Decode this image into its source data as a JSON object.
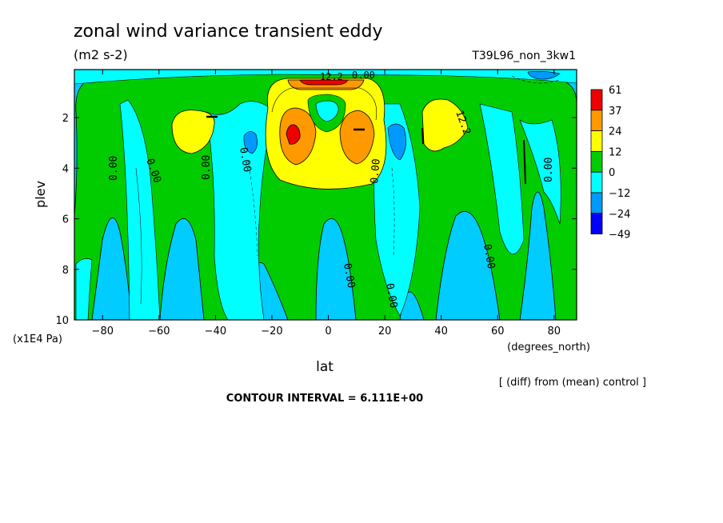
{
  "chart_data": {
    "type": "heatmap",
    "title": "zonal wind variance transient eddy",
    "subtitle": "(m2 s-2)",
    "experiment": "T39L96_non_3kw1",
    "xlabel": "lat",
    "xunits": "(degrees_north)",
    "ylabel": "plev",
    "yunits": "(x1E4 Pa)",
    "xlim": [
      -90,
      88
    ],
    "ylim": [
      10,
      0.1
    ],
    "x_ticks": [
      "-80",
      "-60",
      "-40",
      "-20",
      "0",
      "20",
      "40",
      "60",
      "80"
    ],
    "y_ticks": [
      "2",
      "4",
      "6",
      "8",
      "10"
    ],
    "note": "[ (diff) from (mean) control ]",
    "contour_interval": "CONTOUR INTERVAL = 6.111E+00",
    "contour_labels": [
      "0.00",
      "0.00",
      "0.00",
      "0.00",
      "0.00",
      "0.00",
      "0.00",
      "0.00",
      "0.00",
      "12.2",
      "0.00",
      "12.2"
    ],
    "legend": {
      "placement": "right",
      "labels": [
        "61",
        "37",
        "24",
        "12",
        "0",
        "-12",
        "-24",
        "-49"
      ],
      "colors": [
        "#ee0000",
        "#ff9900",
        "#ffff00",
        "#00cc00",
        "#00ffff",
        "#0099ff",
        "#0000ff"
      ]
    }
  }
}
